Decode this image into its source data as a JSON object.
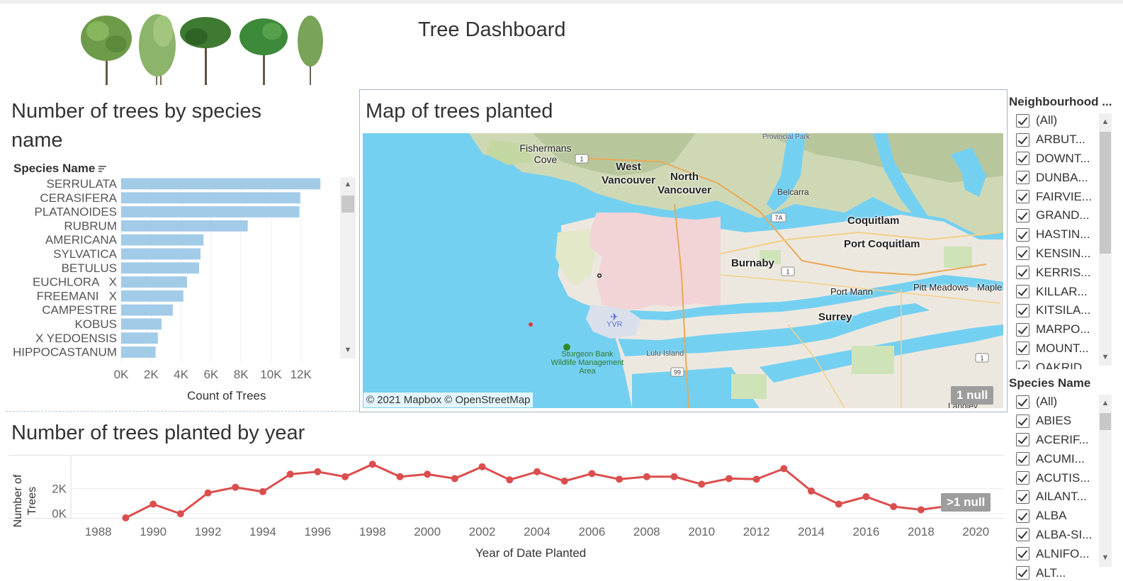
{
  "dashboard": {
    "title": "Tree Dashboard"
  },
  "species_chart": {
    "title": "Number of trees by species name",
    "column_header": "Species Name",
    "x_axis_title": "Count of Trees"
  },
  "map": {
    "title": "Map of trees planted",
    "attribution": "© 2021 Mapbox © OpenStreetMap",
    "null_badge": "1 null",
    "places": {
      "fishermans_cove": "Fishermans Cove",
      "west_vancouver": "West Vancouver",
      "north_vancouver": "North Vancouver",
      "belcarra": "Belcarra",
      "coquitlam": "Coquitlam",
      "port_coquitlam": "Port Coquitlam",
      "burnaby": "Burnaby",
      "port_mann": "Port Mann",
      "pitt_meadows": "Pitt Meadows",
      "maple": "Maple",
      "surrey": "Surrey",
      "yvr": "YVR",
      "lulu_island": "Lulu Island",
      "sturgeon_bank": "Sturgeon Bank Wildlife Management Area",
      "provincial_park": "Provincial Park",
      "langley": "Langley"
    },
    "road_shields": [
      "1",
      "7A",
      "1",
      "99",
      "1"
    ]
  },
  "year_chart": {
    "title": "Number of trees planted by year",
    "y_axis_title": "Number of Trees",
    "x_axis_title": "Year of Date Planted",
    "null_badge": ">1 null"
  },
  "chart_data": [
    {
      "type": "bar",
      "orientation": "horizontal",
      "title": "Number of trees by species name",
      "ylabel": "Species Name",
      "xlabel": "Count of Trees",
      "xlim": [
        0,
        14000
      ],
      "x_ticks": [
        "0K",
        "2K",
        "4K",
        "6K",
        "8K",
        "10K",
        "12K"
      ],
      "x_tick_values": [
        0,
        2000,
        4000,
        6000,
        8000,
        10000,
        12000
      ],
      "categories": [
        "SERRULATA",
        "CERASIFERA",
        "PLATANOIDES",
        "RUBRUM",
        "AMERICANA",
        "SYLVATICA",
        "BETULUS",
        "EUCHLORA   X",
        "FREEMANI   X",
        "CAMPESTRE",
        "KOBUS",
        "X YEDOENSIS",
        "HIPPOCASTANUM"
      ],
      "values": [
        13300,
        11950,
        11900,
        8450,
        5500,
        5300,
        5200,
        4400,
        4150,
        3450,
        2700,
        2450,
        2300
      ],
      "bar_color": "#a2cbe8",
      "grid": true
    },
    {
      "type": "line",
      "title": "Number of trees planted by year",
      "xlabel": "Year of Date Planted",
      "ylabel": "Number of Trees",
      "xlim": [
        1987,
        2021
      ],
      "ylim": [
        -300,
        4700
      ],
      "x_ticks": [
        1988,
        1990,
        1992,
        1994,
        1996,
        1998,
        2000,
        2002,
        2004,
        2006,
        2008,
        2010,
        2012,
        2014,
        2016,
        2018,
        2020
      ],
      "y_ticks": [
        "0K",
        "2K"
      ],
      "y_tick_values": [
        0,
        2000
      ],
      "x": [
        1989,
        1990,
        1991,
        1992,
        1993,
        1994,
        1995,
        1996,
        1997,
        1998,
        1999,
        2000,
        2001,
        2002,
        2003,
        2004,
        2005,
        2006,
        2007,
        2008,
        2009,
        2010,
        2011,
        2012,
        2013,
        2014,
        2015,
        2016,
        2017,
        2018,
        2019
      ],
      "values": [
        -350,
        750,
        -20,
        1650,
        2100,
        1750,
        3150,
        3350,
        2950,
        3950,
        2950,
        3150,
        2800,
        3750,
        2700,
        3350,
        2600,
        3200,
        2750,
        2950,
        2950,
        2350,
        2800,
        2750,
        3600,
        1800,
        750,
        1350,
        550,
        300,
        600
      ],
      "line_color": "#db4e4e",
      "grid": true
    }
  ],
  "filters": {
    "neighbourhood": {
      "title": "Neighbourhood ...",
      "items": [
        "(All)",
        "ARBUT...",
        "DOWNT...",
        "DUNBA...",
        "FAIRVIE...",
        "GRAND...",
        "HASTIN...",
        "KENSIN...",
        "KERRIS...",
        "KILLAR...",
        "KITSILA...",
        "MARPO...",
        "MOUNT...",
        "OAKRID..."
      ]
    },
    "species": {
      "title": "Species Name",
      "items": [
        "(All)",
        "ABIES",
        "ACERIF...",
        "ACUMI...",
        "ACUTIS...",
        "AILANT...",
        "ALBA",
        "ALBA-SI...",
        "ALNIFO...",
        "ALT..."
      ]
    }
  },
  "icons": {
    "sort": "sort-descending-icon",
    "scroll_up": "chevron-up-icon",
    "scroll_down": "chevron-down-icon",
    "checkbox": "checkbox-checked-icon",
    "airport": "airplane-icon",
    "park": "tree-icon"
  }
}
